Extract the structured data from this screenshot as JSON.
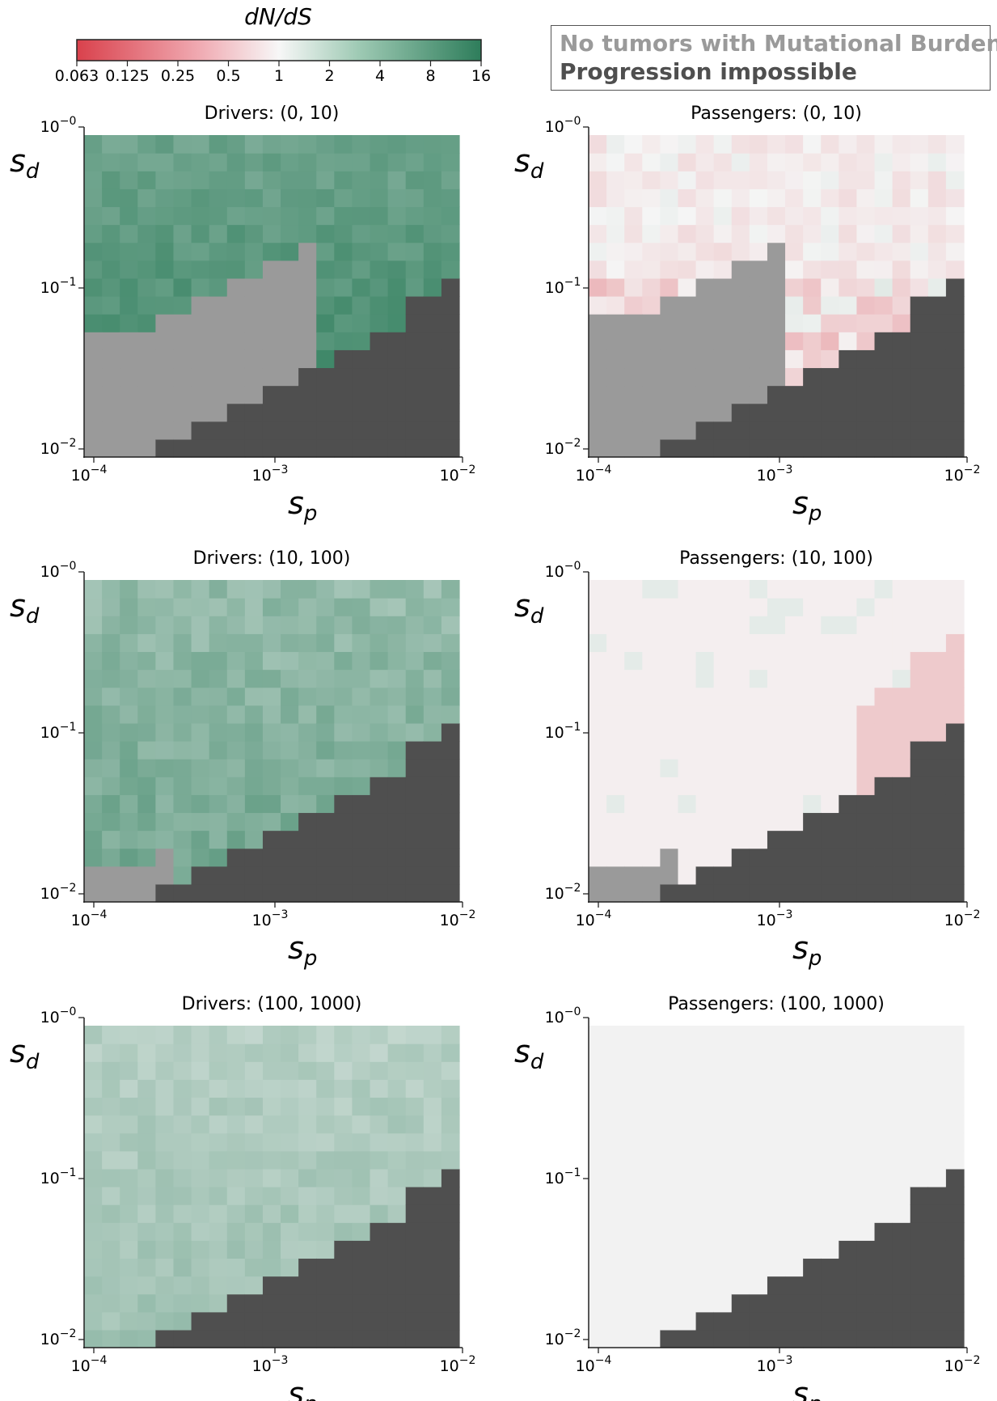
{
  "colorbar": {
    "label": "dN/dS",
    "ticks": [
      "0.063",
      "0.125",
      "0.25",
      "0.5",
      "1",
      "2",
      "4",
      "8",
      "16"
    ],
    "low_color": "#d9414c",
    "mid_color": "#f5f5f5",
    "high_color": "#2e7d5b"
  },
  "legend": {
    "line1": "No tumors with Mutational Burden",
    "line1_color": "#9a9a9a",
    "line2": "Progression impossible",
    "line2_color": "#4f4f4f"
  },
  "colors": {
    "no_tumors": "#9a9a9a",
    "impossible": "#4f4f4f",
    "no_data": "#f2f2f2"
  },
  "axes": {
    "xlabel": "s",
    "xlabel_sub": "p",
    "ylabel": "s",
    "ylabel_sub": "d",
    "x_ticks": [
      {
        "base": "10",
        "exp": "−4"
      },
      {
        "base": "10",
        "exp": "−3"
      },
      {
        "base": "10",
        "exp": "−2"
      }
    ],
    "y_ticks": [
      {
        "base": "10",
        "exp": "−0"
      },
      {
        "base": "10",
        "exp": "−1"
      },
      {
        "base": "10",
        "exp": "−2"
      }
    ],
    "xlim": [
      0.0001,
      0.01
    ],
    "ylim": [
      0.01,
      1
    ],
    "x_scale": "log",
    "y_scale": "log"
  },
  "chart_data": [
    {
      "type": "heatmap",
      "title": "Drivers: (0, 10)",
      "base_log2": 3.6,
      "noise": 0.35,
      "k_no_tumors": 7,
      "max_no_tumors_col": 12,
      "cells": "row-wise log2(dN/dS) ratio over 21 log-spaced s_p bins x 18 log-spaced s_d bins"
    },
    {
      "type": "heatmap",
      "title": "Passengers: (0, 10)",
      "base_log2": -0.45,
      "noise": 0.55,
      "k_no_tumors": 8,
      "max_no_tumors_col": 10,
      "cells": "row-wise log2(dN/dS) ratio; upper-left region near 1 (no signal)"
    },
    {
      "type": "heatmap",
      "title": "Drivers: (10, 100)",
      "base_log2": 2.3,
      "noise": 0.4,
      "k_no_tumors": 2,
      "max_no_tumors_col": 4,
      "cells": "row-wise log2(dN/dS) ratio"
    },
    {
      "type": "heatmap",
      "title": "Passengers: (10, 100)",
      "base_log2": -0.3,
      "noise": 0.2,
      "k_no_tumors": 2,
      "max_no_tumors_col": 4,
      "cells": "mostly no signal; slight purifying near boundary"
    },
    {
      "type": "heatmap",
      "title": "Drivers: (100, 1000)",
      "base_log2": 1.3,
      "noise": 0.25,
      "k_no_tumors": 0,
      "max_no_tumors_col": 0,
      "cells": "row-wise log2(dN/dS) ratio"
    },
    {
      "type": "heatmap",
      "title": "Passengers: (100, 1000)",
      "base_log2": 0.0,
      "noise": 0.0,
      "k_no_tumors": 0,
      "max_no_tumors_col": 0,
      "cells": "no signal"
    }
  ]
}
